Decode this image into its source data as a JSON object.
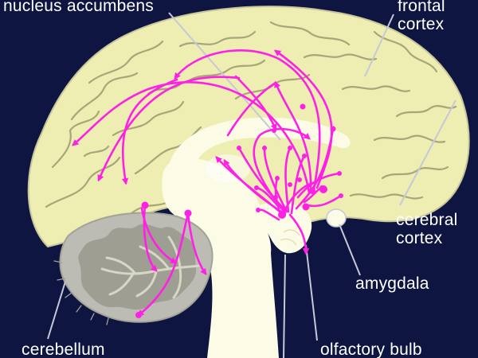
{
  "labels": {
    "nucleus_accumbens": "nucleus accumbens",
    "frontal_line1": "frontal",
    "frontal_line2": "cortex",
    "cerebral_line1": "cerebral",
    "cerebral_line2": "cortex",
    "amygdala": "amygdala",
    "cerebellum": "cerebellum",
    "olfactory_bulb": "olfactory bulb"
  },
  "colors": {
    "background": "#0d1540",
    "cortex": "#eeeeb2",
    "gyri_lines": "#a7a679",
    "inner_brain": "#fbfbe6",
    "cerebellum": "#bdbcb4",
    "pathway": "#ff20e6",
    "leader_line": "#c6c8d8"
  }
}
